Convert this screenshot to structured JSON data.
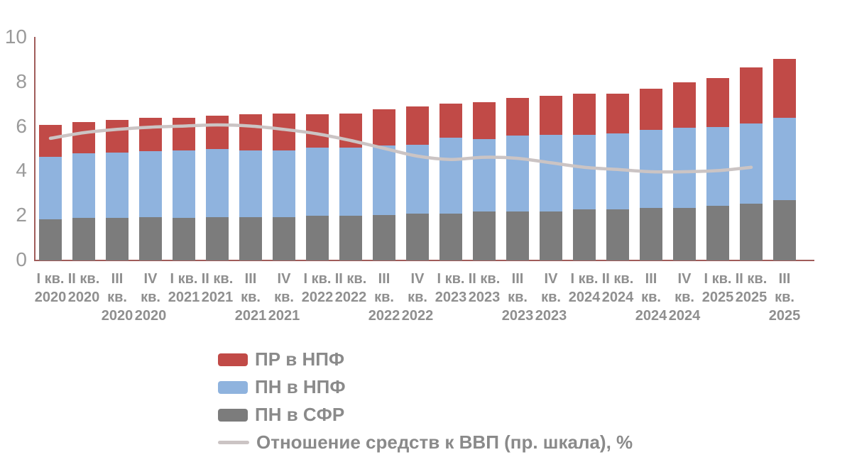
{
  "chart_data": {
    "type": "bar",
    "stacked": true,
    "title": "",
    "xlabel": "",
    "ylabel": "",
    "ylim": [
      0,
      10
    ],
    "yticks": [
      0,
      2,
      4,
      6,
      8,
      10
    ],
    "grid": false,
    "legend_position": "bottom-left",
    "axis_color": "#a05c5a",
    "tick_label_color": "#9a9a9a",
    "categories": [
      [
        "I кв.",
        "2020"
      ],
      [
        "II кв.",
        "2020"
      ],
      [
        "III",
        "кв.",
        "2020"
      ],
      [
        "IV",
        "кв.",
        "2020"
      ],
      [
        "I кв.",
        "2021"
      ],
      [
        "II кв.",
        "2021"
      ],
      [
        "III",
        "кв.",
        "2021"
      ],
      [
        "IV",
        "кв.",
        "2021"
      ],
      [
        "I кв.",
        "2022"
      ],
      [
        "II кв.",
        "2022"
      ],
      [
        "III",
        "кв.",
        "2022"
      ],
      [
        "IV",
        "кв.",
        "2022"
      ],
      [
        "I кв.",
        "2023"
      ],
      [
        "II кв.",
        "2023"
      ],
      [
        "III",
        "кв.",
        "2023"
      ],
      [
        "IV",
        "кв.",
        "2023"
      ],
      [
        "I кв.",
        "2024"
      ],
      [
        "II кв.",
        "2024"
      ],
      [
        "III",
        "кв.",
        "2024"
      ],
      [
        "IV",
        "кв.",
        "2024"
      ],
      [
        "I кв.",
        "2025"
      ],
      [
        "II кв.",
        "2025"
      ],
      [
        "III",
        "кв.",
        "2025"
      ]
    ],
    "series": [
      {
        "name": "ПН в СФР",
        "key": "pn-sfr",
        "color": "#7c7c7c",
        "values": [
          1.85,
          1.9,
          1.9,
          1.95,
          1.9,
          1.95,
          1.95,
          1.95,
          2.0,
          2.0,
          2.05,
          2.1,
          2.1,
          2.2,
          2.2,
          2.2,
          2.3,
          2.3,
          2.35,
          2.35,
          2.45,
          2.55,
          2.7
        ]
      },
      {
        "name": "ПН в НПФ",
        "key": "pn-npf",
        "color": "#8fb3de",
        "values": [
          2.8,
          2.9,
          2.95,
          2.95,
          3.05,
          3.05,
          3.0,
          3.0,
          3.05,
          3.05,
          3.1,
          3.1,
          3.4,
          3.25,
          3.4,
          3.45,
          3.35,
          3.4,
          3.5,
          3.6,
          3.55,
          3.6,
          3.7
        ]
      },
      {
        "name": "ПР в НПФ",
        "key": "pr-npf",
        "color": "#c14a47",
        "values": [
          1.45,
          1.4,
          1.45,
          1.5,
          1.45,
          1.5,
          1.6,
          1.65,
          1.5,
          1.55,
          1.65,
          1.7,
          1.55,
          1.65,
          1.7,
          1.75,
          1.85,
          1.8,
          1.85,
          2.05,
          2.2,
          2.5,
          2.65
        ]
      }
    ],
    "line_series": {
      "name": "Отношение средств к ВВП (пр. шкала), %",
      "key": "gdp-ratio",
      "color": "#cbc4c4",
      "values": [
        5.45,
        5.7,
        5.85,
        5.95,
        6.0,
        6.05,
        6.0,
        5.85,
        5.65,
        5.35,
        5.0,
        4.65,
        4.5,
        4.6,
        4.55,
        4.35,
        4.15,
        4.05,
        3.95,
        3.95,
        4.0,
        4.15,
        null
      ]
    }
  },
  "legend": {
    "items": [
      {
        "label": "ПР в НПФ",
        "swatch": "rect",
        "color": "#c14a47"
      },
      {
        "label": "ПН в НПФ",
        "swatch": "rect",
        "color": "#8fb3de"
      },
      {
        "label": "ПН в СФР",
        "swatch": "rect",
        "color": "#7c7c7c"
      },
      {
        "label": "Отношение средств к ВВП (пр. шкала), %",
        "swatch": "line",
        "color": "#cbc4c4"
      }
    ]
  }
}
